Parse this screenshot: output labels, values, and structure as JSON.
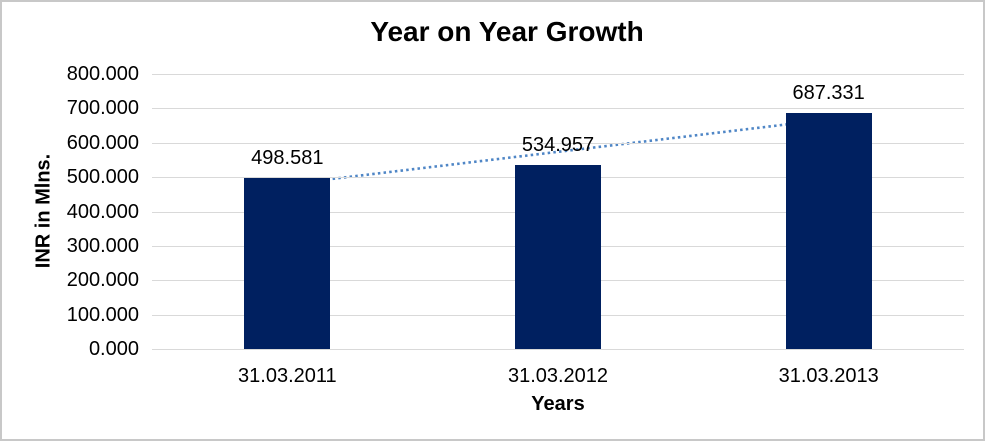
{
  "window": {
    "background_color": "#FFFFFF",
    "border_color": "#C8C8C8"
  },
  "chart_data": {
    "type": "bar",
    "title": "Year on Year Growth",
    "xlabel": "Years",
    "ylabel": "INR in Mlns.",
    "categories": [
      "31.03.2011",
      "31.03.2012",
      "31.03.2013"
    ],
    "values": [
      498.581,
      534.957,
      687.331
    ],
    "data_labels": [
      "498.581",
      "534.957",
      "687.331"
    ],
    "ylim": [
      0,
      800
    ],
    "ytick_values": [
      800,
      700,
      600,
      500,
      400,
      300,
      200,
      100,
      0
    ],
    "yticks": [
      "800.000",
      "700.000",
      "600.000",
      "500.000",
      "400.000",
      "300.000",
      "200.000",
      "100.000",
      "0.000"
    ],
    "grid": "horizontal",
    "legend": "none",
    "bar_color": "#002060",
    "gridline_color": "#D9D9D9",
    "trendline": {
      "type": "linear",
      "style": "dotted",
      "color": "#4F86C6",
      "start_value": 479.2,
      "end_value": 668.0
    }
  }
}
